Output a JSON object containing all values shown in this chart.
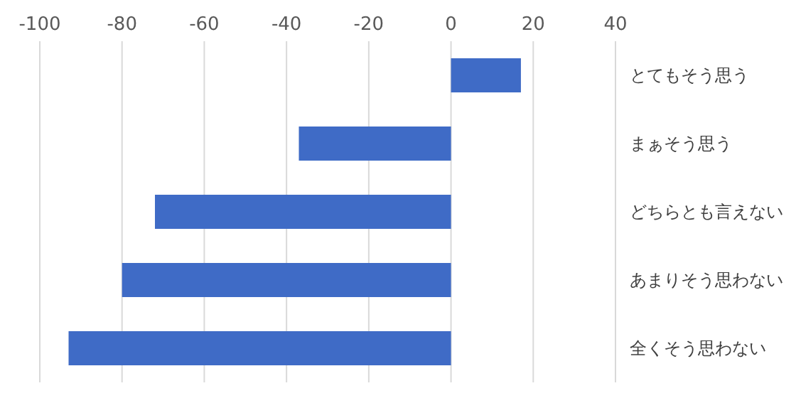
{
  "chart_data": {
    "type": "bar",
    "orientation": "horizontal",
    "categories": [
      "とてもそう思う",
      "まぁそう思う",
      "どちらとも言えない",
      "あまりそう思わない",
      "全くそう思わない"
    ],
    "values": [
      17,
      -37,
      -72,
      -80,
      -93
    ],
    "color": "#3f6bc6",
    "xlim": [
      -100,
      40
    ],
    "xticks": [
      -100,
      -80,
      -60,
      -40,
      -20,
      0,
      20,
      40
    ],
    "grid": "x"
  }
}
